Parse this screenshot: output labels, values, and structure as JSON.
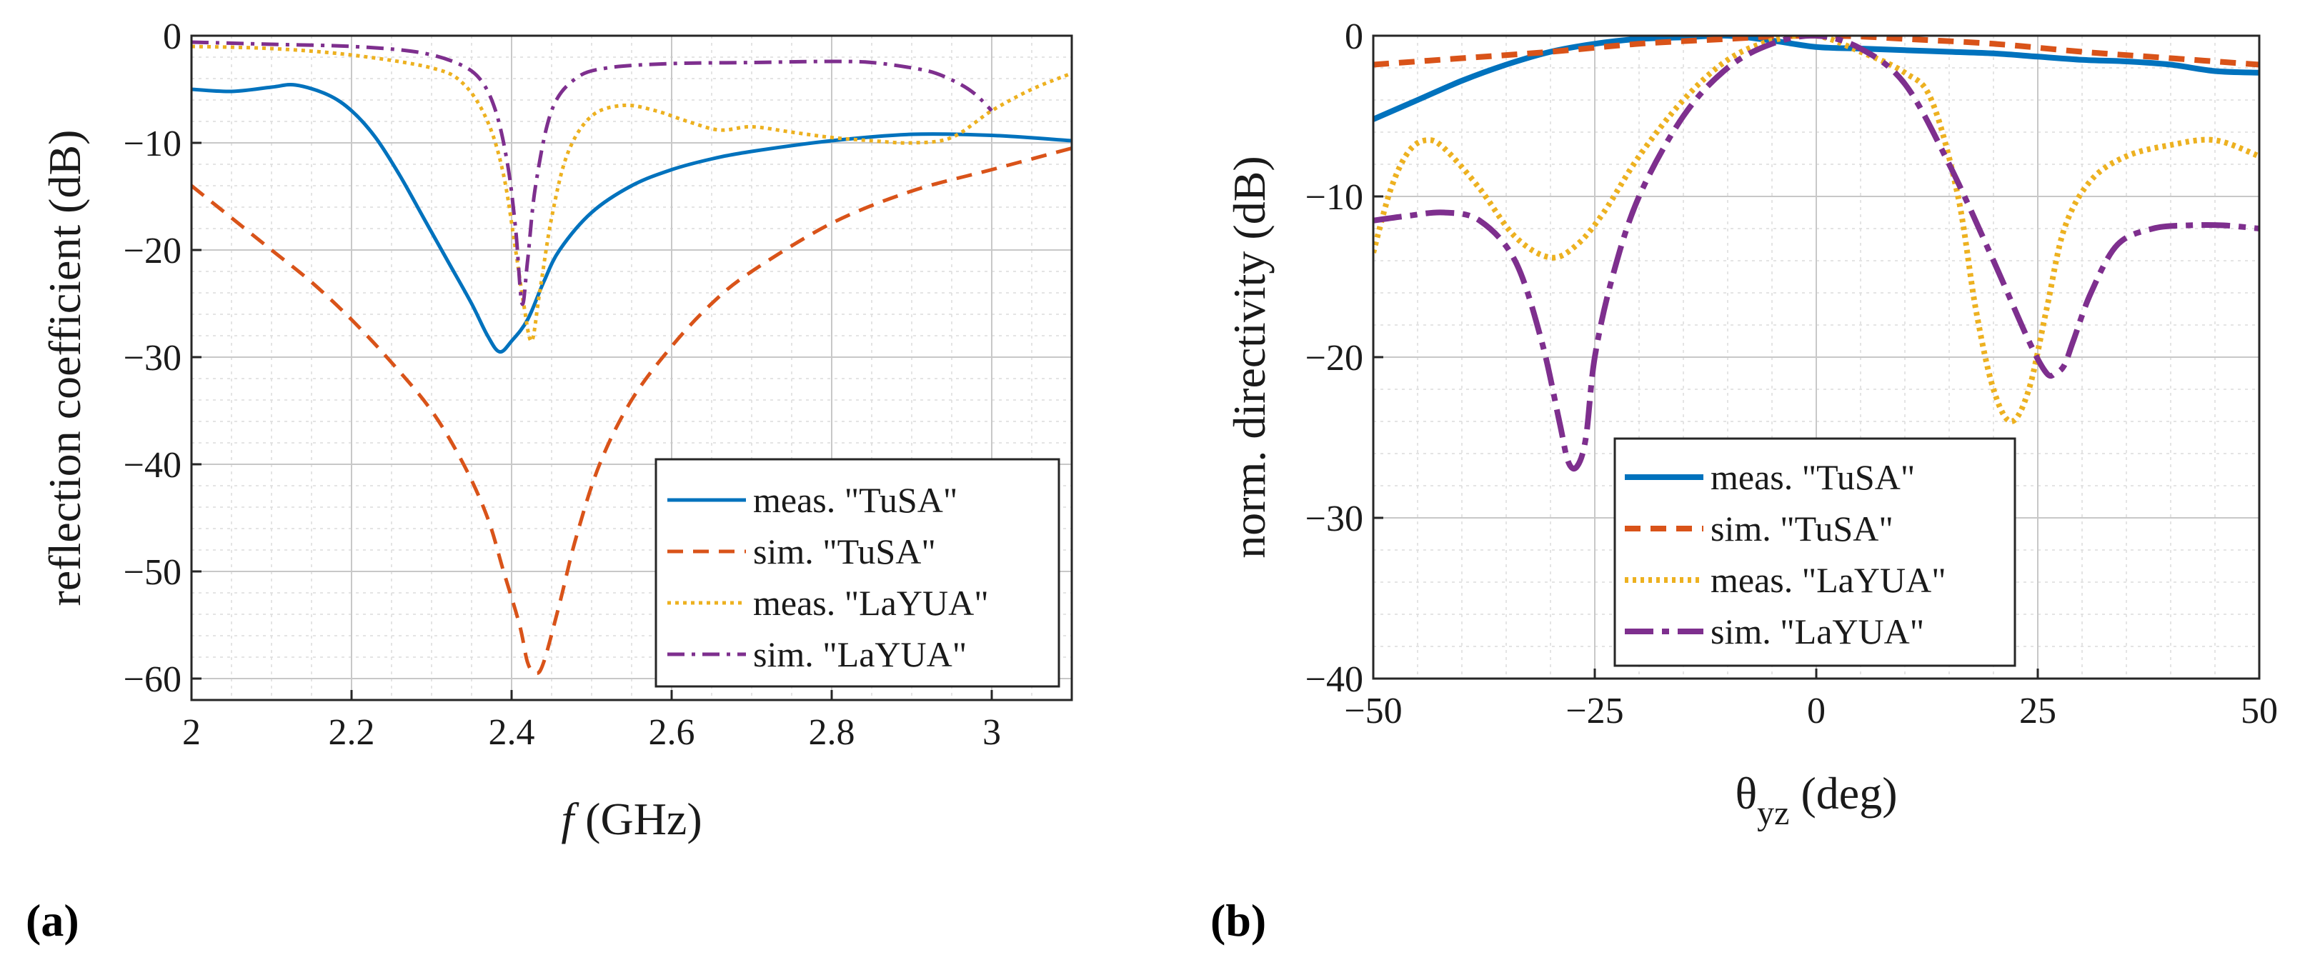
{
  "figure": {
    "panel_a_label": "(a)",
    "panel_b_label": "(b)"
  },
  "chart_data": [
    {
      "type": "line",
      "panel": "a",
      "title": "",
      "xlabel_italic": "f",
      "xlabel_rest": " (GHz)",
      "ylabel": "reflection coefficient (dB)",
      "xlim": [
        2,
        3.1
      ],
      "ylim": [
        -62,
        0
      ],
      "xticks": [
        2,
        2.2,
        2.4,
        2.6,
        2.8,
        3
      ],
      "xtick_labels": [
        "2",
        "2.2",
        "2.4",
        "2.6",
        "2.8",
        "3"
      ],
      "yticks": [
        0,
        -10,
        -20,
        -30,
        -40,
        -50,
        -60
      ],
      "ytick_labels": [
        "0",
        "−10",
        "−20",
        "−30",
        "−40",
        "−50",
        "−60"
      ],
      "grid": true,
      "minor_grid": true,
      "legend_position": "bottom-right",
      "series": [
        {
          "name": "meas. \"TuSA\"",
          "color": "#0072BD",
          "dash": "solid",
          "x": [
            2.0,
            2.05,
            2.1,
            2.13,
            2.17,
            2.2,
            2.23,
            2.26,
            2.29,
            2.32,
            2.35,
            2.37,
            2.385,
            2.4,
            2.42,
            2.44,
            2.46,
            2.5,
            2.55,
            2.6,
            2.65,
            2.7,
            2.8,
            2.9,
            3.0,
            3.1
          ],
          "y": [
            -5,
            -5.2,
            -4.8,
            -4.6,
            -5.5,
            -7,
            -9.5,
            -13,
            -17,
            -21,
            -25,
            -28,
            -29.5,
            -28.5,
            -26.5,
            -23,
            -20,
            -16.5,
            -14,
            -12.5,
            -11.5,
            -10.8,
            -9.8,
            -9.2,
            -9.3,
            -9.8
          ]
        },
        {
          "name": "sim. \"TuSA\"",
          "color": "#D95319",
          "dash": "dashed",
          "x": [
            2.0,
            2.05,
            2.1,
            2.15,
            2.2,
            2.25,
            2.3,
            2.34,
            2.37,
            2.39,
            2.41,
            2.42,
            2.43,
            2.44,
            2.46,
            2.48,
            2.51,
            2.55,
            2.6,
            2.65,
            2.7,
            2.8,
            2.9,
            3.0,
            3.1
          ],
          "y": [
            -14,
            -17,
            -20,
            -23,
            -26.5,
            -30.5,
            -35,
            -40,
            -45,
            -50,
            -55,
            -58.5,
            -59.5,
            -58.5,
            -53,
            -47,
            -40,
            -34,
            -29,
            -25,
            -22,
            -17.5,
            -14.5,
            -12.5,
            -10.5
          ]
        },
        {
          "name": "meas. \"LaYUA\"",
          "color": "#EDB120",
          "dash": "dotted",
          "x": [
            2.0,
            2.1,
            2.2,
            2.3,
            2.34,
            2.37,
            2.39,
            2.405,
            2.415,
            2.425,
            2.435,
            2.45,
            2.47,
            2.5,
            2.54,
            2.58,
            2.62,
            2.66,
            2.7,
            2.75,
            2.8,
            2.85,
            2.9,
            2.95,
            3.0,
            3.05,
            3.1
          ],
          "y": [
            -1,
            -1.2,
            -1.8,
            -3,
            -4.5,
            -8,
            -13,
            -20,
            -25,
            -28.5,
            -24,
            -17,
            -11,
            -7.5,
            -6.5,
            -7,
            -8,
            -8.8,
            -8.5,
            -9,
            -9.5,
            -9.8,
            -10,
            -9.5,
            -7,
            -5,
            -3.5
          ]
        },
        {
          "name": "sim. \"LaYUA\"",
          "color": "#7E2F8E",
          "dash": "dashdot",
          "x": [
            2.0,
            2.1,
            2.2,
            2.28,
            2.33,
            2.36,
            2.38,
            2.395,
            2.405,
            2.413,
            2.42,
            2.43,
            2.45,
            2.48,
            2.52,
            2.6,
            2.7,
            2.8,
            2.85,
            2.9,
            2.93,
            2.96,
            2.98,
            3.0
          ],
          "y": [
            -0.6,
            -0.8,
            -1,
            -1.5,
            -2.5,
            -4,
            -7,
            -12,
            -18,
            -25,
            -21,
            -14,
            -7,
            -4,
            -3,
            -2.6,
            -2.5,
            -2.4,
            -2.5,
            -3,
            -3.5,
            -4.5,
            -5.5,
            -7
          ]
        }
      ]
    },
    {
      "type": "line",
      "panel": "b",
      "title": "",
      "xlabel_main": "θ",
      "xlabel_sub": "yz",
      "xlabel_rest": " (deg)",
      "ylabel": "norm. directivity (dB)",
      "xlim": [
        -50,
        50
      ],
      "ylim": [
        -40,
        0
      ],
      "xticks": [
        -50,
        -25,
        0,
        25,
        50
      ],
      "xtick_labels": [
        "−50",
        "−25",
        "0",
        "25",
        "50"
      ],
      "yticks": [
        0,
        -10,
        -20,
        -30,
        -40
      ],
      "ytick_labels": [
        "0",
        "−10",
        "−20",
        "−30",
        "−40"
      ],
      "grid": true,
      "minor_grid": true,
      "legend_position": "bottom-center",
      "series": [
        {
          "name": "meas. \"TuSA\"",
          "color": "#0072BD",
          "dash": "solid",
          "x": [
            -50,
            -45,
            -40,
            -35,
            -30,
            -25,
            -20,
            -15,
            -10,
            -5,
            0,
            5,
            10,
            15,
            20,
            25,
            30,
            35,
            40,
            45,
            50
          ],
          "y": [
            -5.2,
            -4,
            -2.8,
            -1.8,
            -1,
            -0.5,
            -0.2,
            -0.1,
            0,
            -0.3,
            -0.7,
            -0.8,
            -0.9,
            -1,
            -1.1,
            -1.3,
            -1.5,
            -1.6,
            -1.8,
            -2.2,
            -2.3
          ]
        },
        {
          "name": "sim. \"TuSA\"",
          "color": "#D95319",
          "dash": "dashed",
          "x": [
            -50,
            -40,
            -30,
            -20,
            -10,
            -5,
            0,
            5,
            10,
            20,
            30,
            40,
            50
          ],
          "y": [
            -1.8,
            -1.4,
            -1,
            -0.5,
            -0.2,
            -0.05,
            0,
            -0.05,
            -0.2,
            -0.5,
            -1,
            -1.4,
            -1.8
          ]
        },
        {
          "name": "meas. \"LaYUA\"",
          "color": "#EDB120",
          "dash": "dotted",
          "x": [
            -50,
            -48,
            -46,
            -44,
            -42,
            -38,
            -34,
            -30,
            -27,
            -24,
            -20,
            -15,
            -10,
            -5,
            0,
            5,
            10,
            13,
            16,
            18,
            20,
            22,
            24,
            26,
            28,
            31,
            35,
            40,
            45,
            50
          ],
          "y": [
            -13.5,
            -9.5,
            -7.2,
            -6.5,
            -7,
            -9.5,
            -12.5,
            -13.8,
            -13,
            -11,
            -7.5,
            -4,
            -1.5,
            -0.3,
            0,
            -1,
            -2.3,
            -4,
            -10,
            -17,
            -22,
            -24,
            -22,
            -17,
            -12,
            -9,
            -7.5,
            -6.8,
            -6.5,
            -7.5
          ]
        },
        {
          "name": "sim. \"LaYUA\"",
          "color": "#7E2F8E",
          "dash": "longdash",
          "x": [
            -50,
            -46,
            -42,
            -38,
            -34,
            -31,
            -29,
            -28,
            -27,
            -26,
            -25,
            -23,
            -20,
            -15,
            -10,
            -5,
            0,
            5,
            10,
            15,
            20,
            24,
            26,
            27,
            28,
            29,
            31,
            34,
            38,
            42,
            46,
            50
          ],
          "y": [
            -11.5,
            -11.2,
            -11,
            -11.5,
            -14,
            -19,
            -24,
            -26.5,
            -26.8,
            -25,
            -20,
            -15,
            -10,
            -5,
            -2,
            -0.5,
            0,
            -0.8,
            -3,
            -8,
            -14,
            -19,
            -21,
            -21,
            -20.5,
            -19,
            -16,
            -13,
            -12,
            -11.8,
            -11.8,
            -12
          ]
        }
      ]
    }
  ]
}
